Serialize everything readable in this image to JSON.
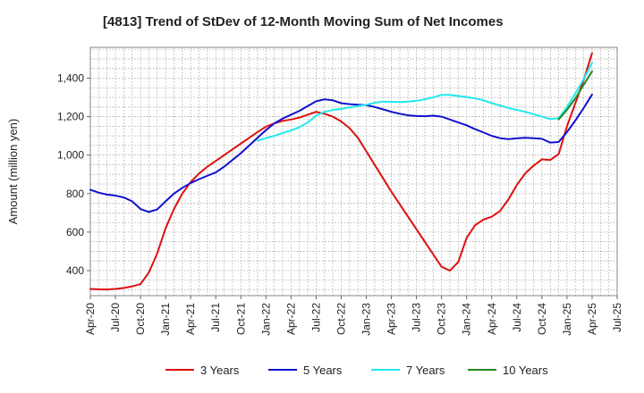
{
  "chart_data": {
    "type": "line",
    "title": "[4813]  Trend of StDev of 12-Month Moving Sum of Net Incomes",
    "xlabel": "",
    "ylabel": "Amount (million yen)",
    "ylim": [
      270,
      1560
    ],
    "yticks": [
      400,
      600,
      800,
      1000,
      1200,
      1400
    ],
    "xrange": [
      "2020-04",
      "2025-07"
    ],
    "xticks": [
      "Apr-20",
      "Jul-20",
      "Oct-20",
      "Jan-21",
      "Apr-21",
      "Jul-21",
      "Oct-21",
      "Jan-22",
      "Apr-22",
      "Jul-22",
      "Oct-22",
      "Jan-23",
      "Apr-23",
      "Jul-23",
      "Oct-23",
      "Jan-24",
      "Apr-24",
      "Jul-24",
      "Oct-24",
      "Jan-25",
      "Apr-25",
      "Jul-25"
    ],
    "grid": true,
    "legend_position": "bottom",
    "series": [
      {
        "name": "3 Years",
        "color": "#dd1111",
        "points": [
          [
            "2020-04",
            305
          ],
          [
            "2020-05",
            303
          ],
          [
            "2020-06",
            302
          ],
          [
            "2020-07",
            305
          ],
          [
            "2020-08",
            310
          ],
          [
            "2020-09",
            318
          ],
          [
            "2020-10",
            330
          ],
          [
            "2020-11",
            390
          ],
          [
            "2020-12",
            490
          ],
          [
            "2021-01",
            620
          ],
          [
            "2021-02",
            720
          ],
          [
            "2021-03",
            800
          ],
          [
            "2021-04",
            860
          ],
          [
            "2021-05",
            905
          ],
          [
            "2021-06",
            940
          ],
          [
            "2021-07",
            970
          ],
          [
            "2021-08",
            1000
          ],
          [
            "2021-09",
            1030
          ],
          [
            "2021-10",
            1060
          ],
          [
            "2021-11",
            1090
          ],
          [
            "2021-12",
            1120
          ],
          [
            "2022-01",
            1148
          ],
          [
            "2022-02",
            1165
          ],
          [
            "2022-03",
            1178
          ],
          [
            "2022-04",
            1185
          ],
          [
            "2022-05",
            1195
          ],
          [
            "2022-06",
            1210
          ],
          [
            "2022-07",
            1225
          ],
          [
            "2022-08",
            1215
          ],
          [
            "2022-09",
            1200
          ],
          [
            "2022-10",
            1175
          ],
          [
            "2022-11",
            1140
          ],
          [
            "2022-12",
            1090
          ],
          [
            "2023-01",
            1020
          ],
          [
            "2023-02",
            950
          ],
          [
            "2023-03",
            880
          ],
          [
            "2023-04",
            810
          ],
          [
            "2023-05",
            745
          ],
          [
            "2023-06",
            680
          ],
          [
            "2023-07",
            615
          ],
          [
            "2023-08",
            550
          ],
          [
            "2023-09",
            485
          ],
          [
            "2023-10",
            420
          ],
          [
            "2023-11",
            400
          ],
          [
            "2023-12",
            445
          ],
          [
            "2024-01",
            570
          ],
          [
            "2024-02",
            635
          ],
          [
            "2024-03",
            665
          ],
          [
            "2024-04",
            680
          ],
          [
            "2024-05",
            710
          ],
          [
            "2024-06",
            770
          ],
          [
            "2024-07",
            845
          ],
          [
            "2024-08",
            905
          ],
          [
            "2024-09",
            945
          ],
          [
            "2024-10",
            978
          ],
          [
            "2024-11",
            975
          ],
          [
            "2024-12",
            1005
          ],
          [
            "2025-01",
            1150
          ],
          [
            "2025-02",
            1270
          ],
          [
            "2025-03",
            1390
          ],
          [
            "2025-04",
            1530
          ]
        ]
      },
      {
        "name": "5 Years",
        "color": "#1111cc",
        "points": [
          [
            "2020-04",
            820
          ],
          [
            "2020-05",
            805
          ],
          [
            "2020-06",
            795
          ],
          [
            "2020-07",
            790
          ],
          [
            "2020-08",
            780
          ],
          [
            "2020-09",
            760
          ],
          [
            "2020-10",
            720
          ],
          [
            "2020-11",
            705
          ],
          [
            "2020-12",
            718
          ],
          [
            "2021-01",
            760
          ],
          [
            "2021-02",
            800
          ],
          [
            "2021-03",
            830
          ],
          [
            "2021-04",
            855
          ],
          [
            "2021-05",
            875
          ],
          [
            "2021-06",
            893
          ],
          [
            "2021-07",
            910
          ],
          [
            "2021-08",
            940
          ],
          [
            "2021-09",
            975
          ],
          [
            "2021-10",
            1010
          ],
          [
            "2021-11",
            1050
          ],
          [
            "2021-12",
            1090
          ],
          [
            "2022-01",
            1130
          ],
          [
            "2022-02",
            1165
          ],
          [
            "2022-03",
            1190
          ],
          [
            "2022-04",
            1210
          ],
          [
            "2022-05",
            1230
          ],
          [
            "2022-06",
            1255
          ],
          [
            "2022-07",
            1280
          ],
          [
            "2022-08",
            1290
          ],
          [
            "2022-09",
            1285
          ],
          [
            "2022-10",
            1270
          ],
          [
            "2022-11",
            1265
          ],
          [
            "2022-12",
            1262
          ],
          [
            "2023-01",
            1260
          ],
          [
            "2023-02",
            1250
          ],
          [
            "2023-03",
            1238
          ],
          [
            "2023-04",
            1225
          ],
          [
            "2023-05",
            1215
          ],
          [
            "2023-06",
            1207
          ],
          [
            "2023-07",
            1203
          ],
          [
            "2023-08",
            1202
          ],
          [
            "2023-09",
            1205
          ],
          [
            "2023-10",
            1200
          ],
          [
            "2023-11",
            1185
          ],
          [
            "2023-12",
            1170
          ],
          [
            "2024-01",
            1155
          ],
          [
            "2024-02",
            1135
          ],
          [
            "2024-03",
            1118
          ],
          [
            "2024-04",
            1100
          ],
          [
            "2024-05",
            1088
          ],
          [
            "2024-06",
            1083
          ],
          [
            "2024-07",
            1087
          ],
          [
            "2024-08",
            1090
          ],
          [
            "2024-09",
            1088
          ],
          [
            "2024-10",
            1085
          ],
          [
            "2024-11",
            1065
          ],
          [
            "2024-12",
            1068
          ],
          [
            "2025-01",
            1120
          ],
          [
            "2025-02",
            1180
          ],
          [
            "2025-03",
            1245
          ],
          [
            "2025-04",
            1315
          ]
        ]
      },
      {
        "name": "7 Years",
        "color": "#22e8ee",
        "points": [
          [
            "2021-12",
            1075
          ],
          [
            "2022-01",
            1088
          ],
          [
            "2022-02",
            1100
          ],
          [
            "2022-03",
            1115
          ],
          [
            "2022-04",
            1128
          ],
          [
            "2022-05",
            1145
          ],
          [
            "2022-06",
            1170
          ],
          [
            "2022-07",
            1205
          ],
          [
            "2022-08",
            1225
          ],
          [
            "2022-09",
            1235
          ],
          [
            "2022-10",
            1240
          ],
          [
            "2022-11",
            1248
          ],
          [
            "2022-12",
            1255
          ],
          [
            "2023-01",
            1262
          ],
          [
            "2023-02",
            1272
          ],
          [
            "2023-03",
            1278
          ],
          [
            "2023-04",
            1277
          ],
          [
            "2023-05",
            1276
          ],
          [
            "2023-06",
            1278
          ],
          [
            "2023-07",
            1282
          ],
          [
            "2023-08",
            1290
          ],
          [
            "2023-09",
            1300
          ],
          [
            "2023-10",
            1313
          ],
          [
            "2023-11",
            1313
          ],
          [
            "2023-12",
            1307
          ],
          [
            "2024-01",
            1302
          ],
          [
            "2024-02",
            1295
          ],
          [
            "2024-03",
            1285
          ],
          [
            "2024-04",
            1270
          ],
          [
            "2024-05",
            1258
          ],
          [
            "2024-06",
            1245
          ],
          [
            "2024-07",
            1235
          ],
          [
            "2024-08",
            1225
          ],
          [
            "2024-09",
            1213
          ],
          [
            "2024-10",
            1200
          ],
          [
            "2024-11",
            1187
          ],
          [
            "2024-12",
            1192
          ],
          [
            "2025-01",
            1250
          ],
          [
            "2025-02",
            1320
          ],
          [
            "2025-03",
            1395
          ],
          [
            "2025-04",
            1480
          ]
        ]
      },
      {
        "name": "10 Years",
        "color": "#228822",
        "points": [
          [
            "2024-12",
            1185
          ],
          [
            "2025-01",
            1235
          ],
          [
            "2025-02",
            1295
          ],
          [
            "2025-03",
            1365
          ],
          [
            "2025-04",
            1435
          ]
        ]
      }
    ]
  }
}
